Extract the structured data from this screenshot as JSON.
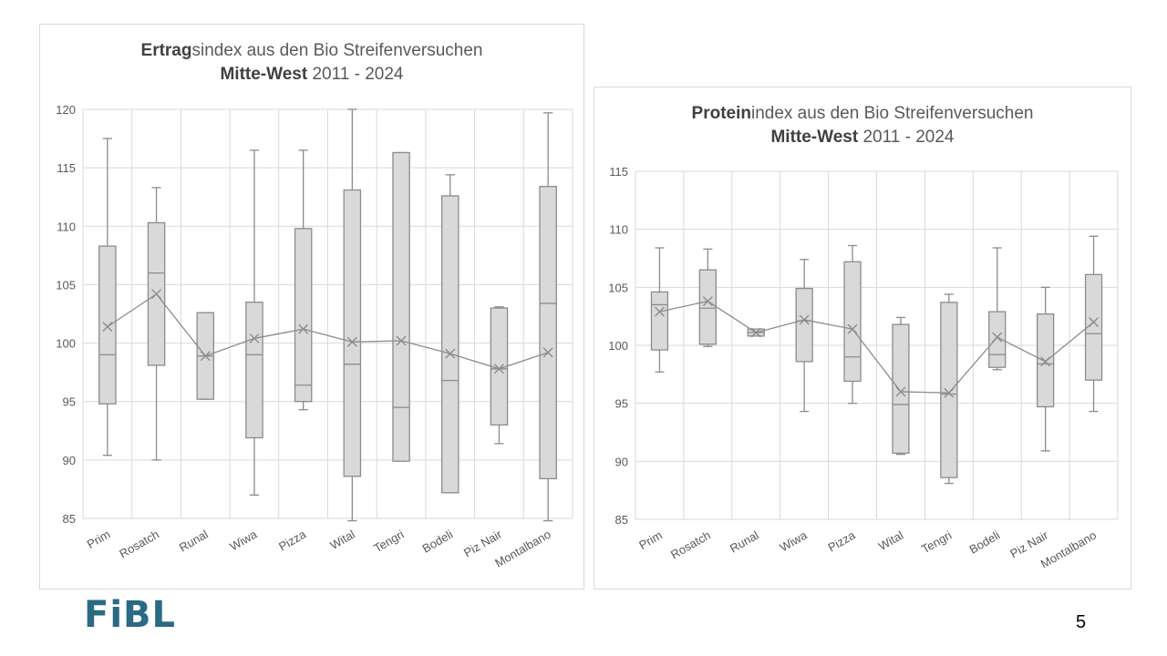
{
  "page_number": "5",
  "logo_text": "FiBL",
  "colors": {
    "box_fill": "#d9d9d9",
    "stroke": "#8c8c8c",
    "grid": "#d9d9d9",
    "text": "#595959",
    "logo": "#2b6a83"
  },
  "chart_data": [
    {
      "type": "box",
      "title_bold_1": "Ertrag",
      "title_rest_1": "sindex aus den Bio Streifenversuchen",
      "title_bold_2": "Mitte-West",
      "title_rest_2": " 2011 - 2024",
      "ylim": [
        85,
        120
      ],
      "y_ticks": [
        85,
        90,
        95,
        100,
        105,
        110,
        115,
        120
      ],
      "grid": true,
      "categories": [
        "Prim",
        "Rosatch",
        "Runal",
        "Wiwa",
        "Pizza",
        "Wital",
        "Tengri",
        "Bodeli",
        "Piz Nair",
        "Montalbano"
      ],
      "boxes": [
        {
          "min": 90.4,
          "q1": 94.8,
          "median": 99.0,
          "q3": 108.3,
          "max": 117.5,
          "mean": 101.4
        },
        {
          "min": 90.0,
          "q1": 98.1,
          "median": 106.0,
          "q3": 110.3,
          "max": 113.3,
          "mean": 104.2
        },
        {
          "min": 95.2,
          "q1": 95.2,
          "median": 98.9,
          "q3": 102.6,
          "max": 102.6,
          "mean": 98.9
        },
        {
          "min": 87.0,
          "q1": 91.9,
          "median": 99.0,
          "q3": 103.5,
          "max": 116.5,
          "mean": 100.4
        },
        {
          "min": 94.3,
          "q1": 95.0,
          "median": 96.4,
          "q3": 109.8,
          "max": 116.5,
          "mean": 101.2
        },
        {
          "min": 84.8,
          "q1": 88.6,
          "median": 98.2,
          "q3": 113.1,
          "max": 120.0,
          "mean": 100.1
        },
        {
          "min": 89.9,
          "q1": 89.9,
          "median": 94.5,
          "q3": 116.3,
          "max": 116.3,
          "mean": 100.2
        },
        {
          "min": 87.2,
          "q1": 87.2,
          "median": 96.8,
          "q3": 112.6,
          "max": 114.4,
          "mean": 99.1
        },
        {
          "min": 91.4,
          "q1": 93.0,
          "median": 97.8,
          "q3": 103.0,
          "max": 103.1,
          "mean": 97.8
        },
        {
          "min": 84.8,
          "q1": 88.4,
          "median": 103.4,
          "q3": 113.4,
          "max": 119.7,
          "mean": 99.2
        }
      ]
    },
    {
      "type": "box",
      "title_bold_1": "Protein",
      "title_rest_1": "index aus den Bio Streifenversuchen",
      "title_bold_2": "Mitte-West",
      "title_rest_2": " 2011 - 2024",
      "ylim": [
        85,
        115
      ],
      "y_ticks": [
        85,
        90,
        95,
        100,
        105,
        110,
        115
      ],
      "grid": true,
      "categories": [
        "Prim",
        "Rosatch",
        "Runal",
        "Wiwa",
        "Pizza",
        "Wital",
        "Tengri",
        "Bodeli",
        "Piz Nair",
        "Montalbano"
      ],
      "boxes": [
        {
          "min": 97.7,
          "q1": 99.6,
          "median": 103.5,
          "q3": 104.6,
          "max": 108.4,
          "mean": 102.9
        },
        {
          "min": 99.9,
          "q1": 100.1,
          "median": 103.2,
          "q3": 106.5,
          "max": 108.3,
          "mean": 103.8
        },
        {
          "min": 100.8,
          "q1": 100.8,
          "median": 101.1,
          "q3": 101.4,
          "max": 101.4,
          "mean": 101.1
        },
        {
          "min": 94.3,
          "q1": 98.6,
          "median": 102.1,
          "q3": 104.9,
          "max": 107.4,
          "mean": 102.2
        },
        {
          "min": 95.0,
          "q1": 96.9,
          "median": 99.0,
          "q3": 107.2,
          "max": 108.6,
          "mean": 101.4
        },
        {
          "min": 90.6,
          "q1": 90.7,
          "median": 94.9,
          "q3": 101.8,
          "max": 102.4,
          "mean": 96.0
        },
        {
          "min": 88.1,
          "q1": 88.6,
          "median": 95.8,
          "q3": 103.7,
          "max": 104.4,
          "mean": 95.9
        },
        {
          "min": 97.9,
          "q1": 98.1,
          "median": 99.2,
          "q3": 102.9,
          "max": 108.4,
          "mean": 100.7
        },
        {
          "min": 90.9,
          "q1": 94.7,
          "median": 98.4,
          "q3": 102.7,
          "max": 105.0,
          "mean": 98.6
        },
        {
          "min": 94.3,
          "q1": 97.0,
          "median": 101.0,
          "q3": 106.1,
          "max": 109.4,
          "mean": 102.0
        }
      ]
    }
  ]
}
